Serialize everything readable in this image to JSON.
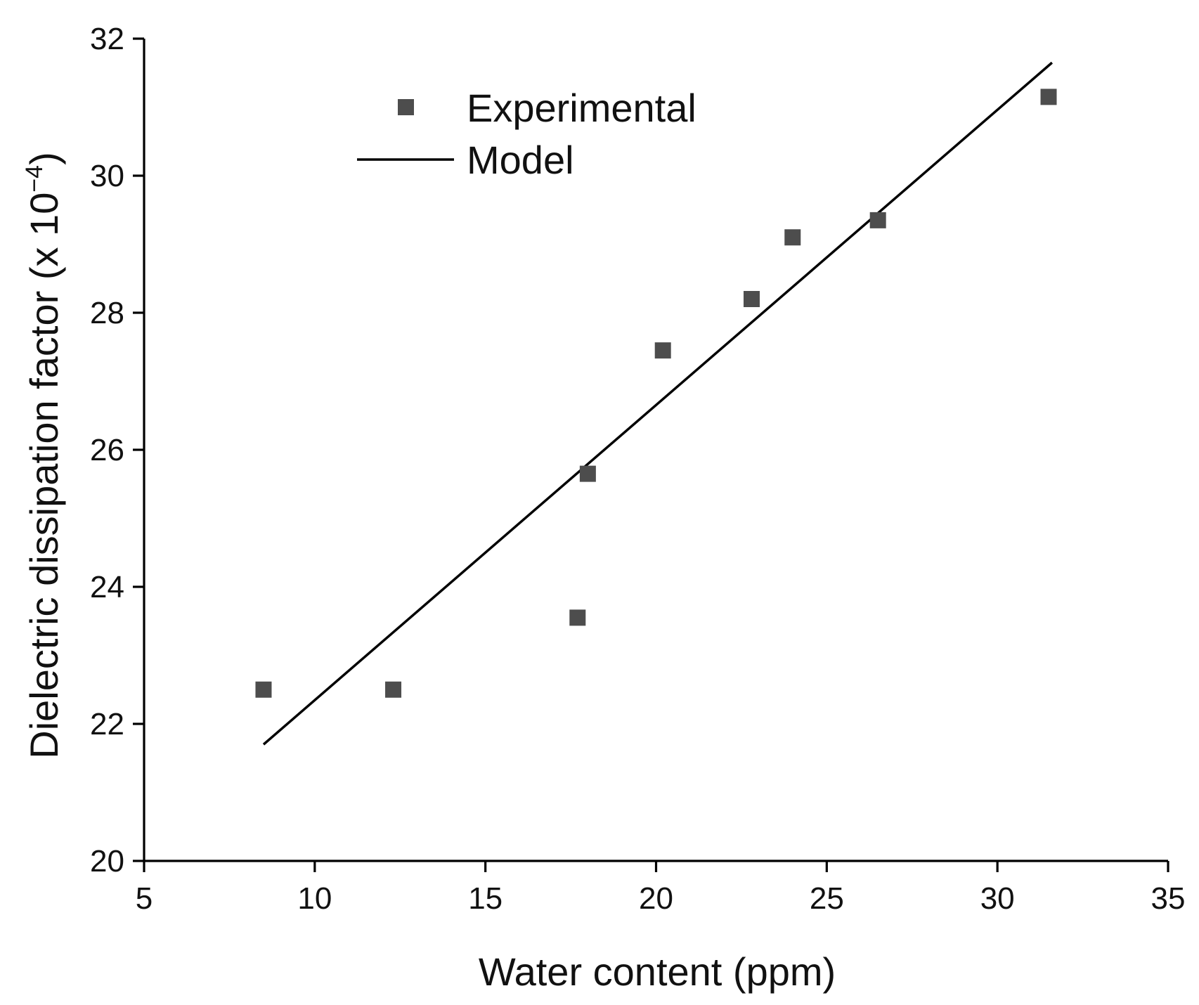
{
  "chart_data": {
    "type": "scatter",
    "title": "",
    "xlabel": "Water content (ppm)",
    "ylabel_main": "Dielectric dissipation factor (x 10",
    "ylabel_sup": "−4",
    "ylabel_close": ")",
    "xlim": [
      5,
      35
    ],
    "ylim": [
      20,
      32
    ],
    "xticks": [
      5,
      10,
      15,
      20,
      25,
      30,
      35
    ],
    "yticks": [
      20,
      22,
      24,
      26,
      28,
      30,
      32
    ],
    "grid": false,
    "legend_position": "top-left",
    "series": [
      {
        "name": "Experimental",
        "kind": "scatter",
        "marker": "square",
        "color": "#4d4d4d",
        "x": [
          8.5,
          12.3,
          17.7,
          18.0,
          20.2,
          22.8,
          24.0,
          26.5,
          31.5
        ],
        "y": [
          22.5,
          22.5,
          23.55,
          25.65,
          27.45,
          28.2,
          29.1,
          29.35,
          31.15
        ]
      },
      {
        "name": "Model",
        "kind": "line",
        "color": "#000000",
        "x": [
          8.5,
          31.6
        ],
        "y": [
          21.7,
          31.65
        ]
      }
    ]
  }
}
